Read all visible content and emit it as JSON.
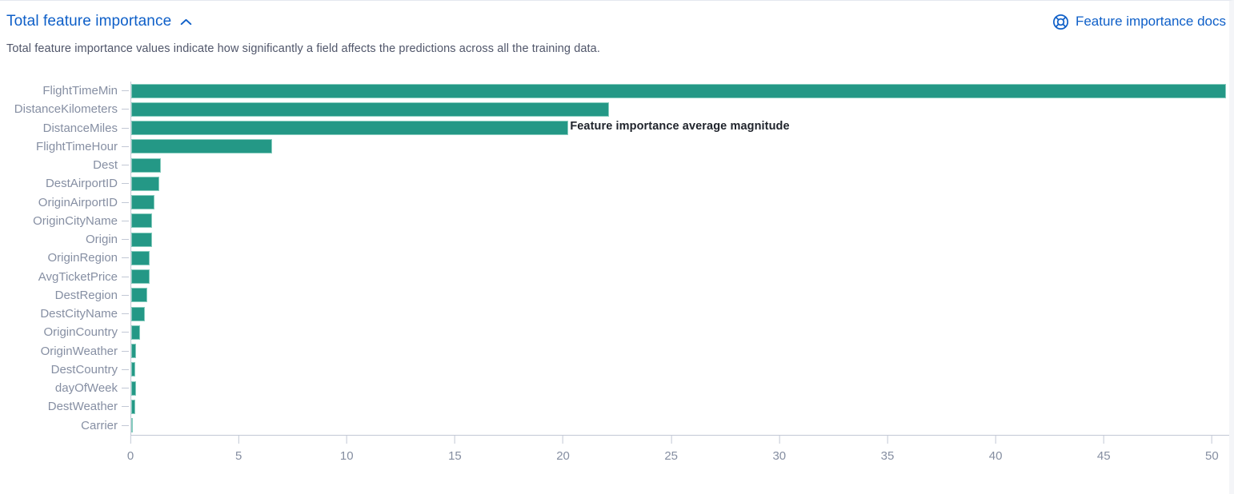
{
  "header": {
    "title": "Total feature importance",
    "docs_link_label": "Feature importance docs",
    "description": "Total feature importance values indicate how significantly a field affects the predictions across all the training data."
  },
  "colors": {
    "link_blue": "#0e5fc8",
    "bar_teal": "#249886",
    "axis_line": "#c2c8d5",
    "axis_label": "#868fa3",
    "body_text": "#50566a"
  },
  "icons": {
    "collapse": "chevron-up-icon",
    "docs": "lifebuoy-icon"
  },
  "chart_data": {
    "type": "bar",
    "orientation": "horizontal",
    "title": "Total feature importance",
    "xlabel": "Feature importance average magnitude",
    "ylabel": "",
    "xlim": [
      0,
      50.8
    ],
    "xticks": [
      0,
      5,
      10,
      15,
      20,
      25,
      30,
      35,
      40,
      45,
      50
    ],
    "grid": false,
    "legend": "none",
    "categories": [
      "FlightTimeMin",
      "DistanceKilometers",
      "DistanceMiles",
      "FlightTimeHour",
      "Dest",
      "DestAirportID",
      "OriginAirportID",
      "OriginCityName",
      "Origin",
      "OriginRegion",
      "AvgTicketPrice",
      "DestRegion",
      "DestCityName",
      "OriginCountry",
      "OriginWeather",
      "DestCountry",
      "dayOfWeek",
      "DestWeather",
      "Carrier"
    ],
    "values": [
      50.65,
      22.1,
      20.2,
      6.5,
      1.37,
      1.31,
      1.08,
      0.97,
      0.95,
      0.87,
      0.84,
      0.73,
      0.62,
      0.42,
      0.22,
      0.2,
      0.21,
      0.18,
      0.02
    ]
  }
}
